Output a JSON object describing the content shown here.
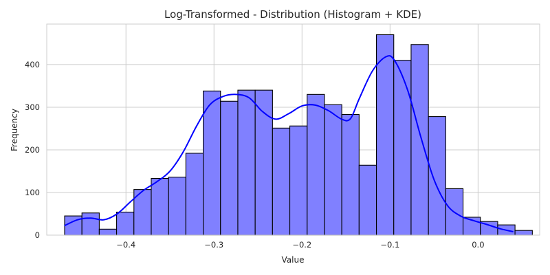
{
  "chart_data": {
    "type": "bar",
    "title": "Log-Transformed - Distribution (Histogram + KDE)",
    "xlabel": "Value",
    "ylabel": "Frequency",
    "xlim": [
      -0.49,
      0.07
    ],
    "ylim": [
      0,
      495
    ],
    "xticks": [
      -0.4,
      -0.3,
      -0.2,
      -0.1,
      0.0
    ],
    "xtick_labels": [
      "−0.4",
      "−0.3",
      "−0.2",
      "−0.1",
      "0.0"
    ],
    "yticks": [
      0,
      100,
      200,
      300,
      400
    ],
    "ytick_labels": [
      "0",
      "100",
      "200",
      "300",
      "400"
    ],
    "grid": true,
    "bin_start": -0.4697,
    "bin_width": 0.01968,
    "values": [
      45,
      52,
      14,
      54,
      107,
      133,
      136,
      192,
      338,
      314,
      340,
      340,
      251,
      256,
      330,
      306,
      283,
      164,
      470,
      410,
      447,
      278,
      109,
      42,
      32,
      24,
      11
    ],
    "bar_color": "#8080ff",
    "kde": {
      "name": "KDE",
      "color": "#0000ff",
      "x": [
        -0.47,
        -0.455,
        -0.44,
        -0.425,
        -0.41,
        -0.395,
        -0.38,
        -0.365,
        -0.35,
        -0.335,
        -0.32,
        -0.305,
        -0.29,
        -0.275,
        -0.26,
        -0.245,
        -0.23,
        -0.215,
        -0.2,
        -0.185,
        -0.17,
        -0.155,
        -0.145,
        -0.135,
        -0.12,
        -0.105,
        -0.095,
        -0.08,
        -0.065,
        -0.05,
        -0.035,
        -0.02,
        -0.005,
        0.01,
        0.025,
        0.04
      ],
      "y": [
        22,
        36,
        40,
        36,
        50,
        78,
        105,
        125,
        150,
        195,
        255,
        305,
        325,
        330,
        322,
        290,
        272,
        285,
        303,
        305,
        292,
        272,
        273,
        320,
        385,
        418,
        410,
        340,
        230,
        130,
        70,
        45,
        34,
        25,
        15,
        8
      ]
    }
  }
}
